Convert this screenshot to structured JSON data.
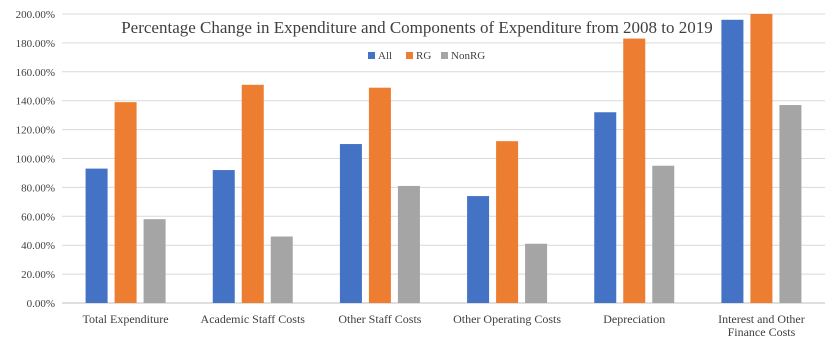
{
  "chart_data": {
    "type": "bar",
    "title": "Percentage Change in Expenditure and Components of Expenditure from 2008 to 2019",
    "xlabel": "",
    "ylabel": "",
    "ylim": [
      0,
      200
    ],
    "y_tick_format": "percent_2dp",
    "y_ticks": [
      "0.00%",
      "20.00%",
      "40.00%",
      "60.00%",
      "80.00%",
      "100.00%",
      "120.00%",
      "140.00%",
      "160.00%",
      "180.00%",
      "200.00%"
    ],
    "categories": [
      [
        "Total Expenditure"
      ],
      [
        "Academic Staff Costs"
      ],
      [
        "Other Staff Costs"
      ],
      [
        "Other Operating Costs"
      ],
      [
        "Depreciation"
      ],
      [
        "Interest and Other",
        "Finance Costs"
      ]
    ],
    "series": [
      {
        "name": "All",
        "color": "#4472c4",
        "values": [
          93,
          92,
          110,
          74,
          132,
          196
        ]
      },
      {
        "name": "RG",
        "color": "#ed7d31",
        "values": [
          139,
          151,
          149,
          112,
          183,
          200
        ]
      },
      {
        "name": "NonRG",
        "color": "#a5a5a5",
        "values": [
          58,
          46,
          81,
          41,
          95,
          137
        ]
      }
    ],
    "grid": true,
    "legend_position": "top-center"
  }
}
